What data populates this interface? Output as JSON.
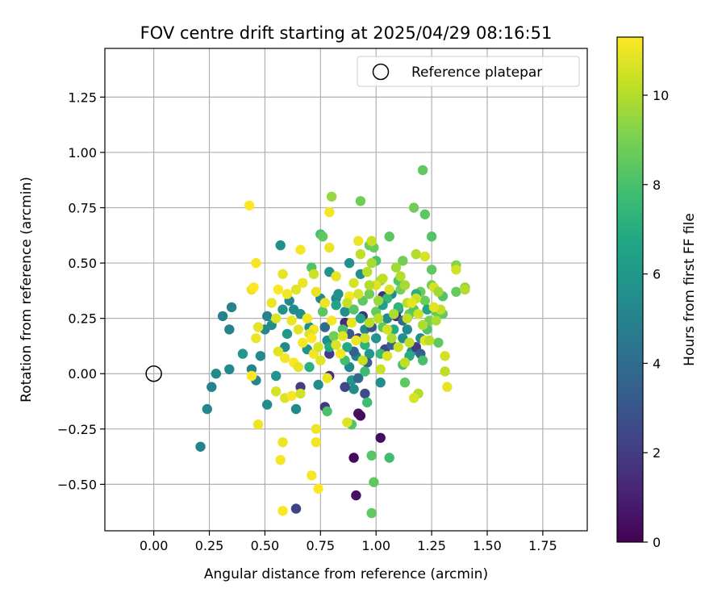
{
  "chart_data": {
    "type": "scatter",
    "title": "FOV centre drift starting at 2025/04/29 08:16:51",
    "xlabel": "Angular distance from reference (arcmin)",
    "ylabel": "Rotation from reference (arcmin)",
    "xlim": [
      -0.22,
      1.95
    ],
    "ylim": [
      -0.71,
      1.47
    ],
    "xticks": [
      "0.00",
      "0.25",
      "0.50",
      "0.75",
      "1.00",
      "1.25",
      "1.50",
      "1.75"
    ],
    "yticks": [
      "−0.50",
      "−0.25",
      "0.00",
      "0.25",
      "0.50",
      "0.75",
      "1.00",
      "1.25"
    ],
    "grid": true,
    "legend": {
      "label": "Reference platepar",
      "placement": "top-right"
    },
    "reference_point": {
      "x": 0.0,
      "y": 0.0
    },
    "colorbar": {
      "label": "Hours from first FF file",
      "colormap": "viridis",
      "range": [
        0,
        11.3
      ],
      "ticks": [
        "0",
        "2",
        "4",
        "6",
        "8",
        "10"
      ]
    },
    "points": [
      {
        "x": 0.21,
        "y": -0.33,
        "c": 5.0
      },
      {
        "x": 0.24,
        "y": -0.16,
        "c": 5.1
      },
      {
        "x": 0.26,
        "y": -0.06,
        "c": 5.0
      },
      {
        "x": 0.28,
        "y": 0.0,
        "c": 5.3
      },
      {
        "x": 0.31,
        "y": 0.26,
        "c": 4.9
      },
      {
        "x": 0.34,
        "y": 0.2,
        "c": 5.0
      },
      {
        "x": 0.35,
        "y": 0.3,
        "c": 5.0
      },
      {
        "x": 0.34,
        "y": 0.02,
        "c": 5.3
      },
      {
        "x": 0.4,
        "y": 0.09,
        "c": 6.0
      },
      {
        "x": 0.44,
        "y": 0.02,
        "c": 5.0
      },
      {
        "x": 0.46,
        "y": -0.03,
        "c": 5.1
      },
      {
        "x": 0.48,
        "y": 0.08,
        "c": 5.3
      },
      {
        "x": 0.5,
        "y": 0.2,
        "c": 5.2
      },
      {
        "x": 0.51,
        "y": -0.14,
        "c": 5.5
      },
      {
        "x": 0.51,
        "y": 0.26,
        "c": 5.0
      },
      {
        "x": 0.53,
        "y": 0.22,
        "c": 5.5
      },
      {
        "x": 0.55,
        "y": -0.01,
        "c": 5.8
      },
      {
        "x": 0.57,
        "y": 0.58,
        "c": 5.6
      },
      {
        "x": 0.58,
        "y": 0.29,
        "c": 5.7
      },
      {
        "x": 0.59,
        "y": 0.12,
        "c": 5.4
      },
      {
        "x": 0.6,
        "y": 0.18,
        "c": 6.0
      },
      {
        "x": 0.61,
        "y": 0.33,
        "c": 5.2
      },
      {
        "x": 0.63,
        "y": 0.29,
        "c": 5.4
      },
      {
        "x": 0.64,
        "y": -0.16,
        "c": 5.3
      },
      {
        "x": 0.66,
        "y": 0.27,
        "c": 5.5
      },
      {
        "x": 0.69,
        "y": 0.11,
        "c": 5.8
      },
      {
        "x": 0.7,
        "y": 0.21,
        "c": 5.6
      },
      {
        "x": 0.74,
        "y": -0.05,
        "c": 5.5
      },
      {
        "x": 0.75,
        "y": 0.34,
        "c": 5.3
      },
      {
        "x": 0.78,
        "y": 0.15,
        "c": 5.5
      },
      {
        "x": 0.79,
        "y": 0.46,
        "c": 5.8
      },
      {
        "x": 0.82,
        "y": 0.34,
        "c": 5.2
      },
      {
        "x": 0.83,
        "y": 0.36,
        "c": 5.6
      },
      {
        "x": 0.86,
        "y": 0.28,
        "c": 5.5
      },
      {
        "x": 0.88,
        "y": 0.5,
        "c": 5.6
      },
      {
        "x": 0.88,
        "y": 0.03,
        "c": 5.3
      },
      {
        "x": 0.89,
        "y": -0.03,
        "c": 5.8
      },
      {
        "x": 0.9,
        "y": -0.07,
        "c": 5.4
      },
      {
        "x": 0.91,
        "y": 0.08,
        "c": 5.0
      },
      {
        "x": 0.93,
        "y": 0.45,
        "c": 5.5
      },
      {
        "x": 0.95,
        "y": 0.2,
        "c": 5.2
      },
      {
        "x": 0.97,
        "y": 0.09,
        "c": 5.9
      },
      {
        "x": 1.0,
        "y": 0.16,
        "c": 5.7
      },
      {
        "x": 1.02,
        "y": -0.04,
        "c": 5.5
      },
      {
        "x": 1.05,
        "y": 0.25,
        "c": 5.4
      },
      {
        "x": 1.07,
        "y": 0.36,
        "c": 5.3
      },
      {
        "x": 1.1,
        "y": 0.29,
        "c": 5.1
      },
      {
        "x": 1.12,
        "y": 0.16,
        "c": 5.6
      },
      {
        "x": 1.14,
        "y": 0.2,
        "c": 5.4
      },
      {
        "x": 1.16,
        "y": 0.1,
        "c": 5.7
      },
      {
        "x": 1.2,
        "y": 0.16,
        "c": 5.4
      },
      {
        "x": 0.64,
        "y": -0.61,
        "c": 2.2
      },
      {
        "x": 0.66,
        "y": -0.06,
        "c": 2.0
      },
      {
        "x": 0.77,
        "y": -0.15,
        "c": 1.8
      },
      {
        "x": 0.79,
        "y": -0.01,
        "c": 1.6
      },
      {
        "x": 0.79,
        "y": 0.09,
        "c": 2.0
      },
      {
        "x": 0.86,
        "y": 0.23,
        "c": 1.3
      },
      {
        "x": 0.86,
        "y": -0.06,
        "c": 2.4
      },
      {
        "x": 0.9,
        "y": -0.38,
        "c": 0.3
      },
      {
        "x": 0.91,
        "y": -0.55,
        "c": 0.5
      },
      {
        "x": 0.92,
        "y": -0.18,
        "c": 0.6
      },
      {
        "x": 0.93,
        "y": -0.19,
        "c": 0.4
      },
      {
        "x": 0.95,
        "y": -0.09,
        "c": 2.6
      },
      {
        "x": 0.92,
        "y": 0.16,
        "c": 2.2
      },
      {
        "x": 0.94,
        "y": 0.26,
        "c": 1.5
      },
      {
        "x": 0.98,
        "y": 0.21,
        "c": 2.8
      },
      {
        "x": 1.02,
        "y": -0.29,
        "c": 0.4
      },
      {
        "x": 1.03,
        "y": 0.35,
        "c": 1.6
      },
      {
        "x": 1.04,
        "y": 0.11,
        "c": 2.5
      },
      {
        "x": 1.09,
        "y": 0.26,
        "c": 1.2
      },
      {
        "x": 1.18,
        "y": 0.12,
        "c": 1.9
      },
      {
        "x": 0.88,
        "y": 0.18,
        "c": 3.2
      },
      {
        "x": 0.9,
        "y": 0.1,
        "c": 3.5
      },
      {
        "x": 0.96,
        "y": 0.05,
        "c": 3.4
      },
      {
        "x": 1.07,
        "y": 0.13,
        "c": 3.6
      },
      {
        "x": 1.12,
        "y": 0.24,
        "c": 3.8
      },
      {
        "x": 1.2,
        "y": 0.09,
        "c": 3.4
      },
      {
        "x": 0.77,
        "y": 0.21,
        "c": 3.9
      },
      {
        "x": 0.92,
        "y": -0.02,
        "c": 3.9
      },
      {
        "x": 0.75,
        "y": 0.63,
        "c": 8.0
      },
      {
        "x": 0.76,
        "y": 0.62,
        "c": 8.5
      },
      {
        "x": 0.8,
        "y": 0.8,
        "c": 9.5
      },
      {
        "x": 0.93,
        "y": 0.78,
        "c": 8.8
      },
      {
        "x": 0.97,
        "y": 0.58,
        "c": 8.6
      },
      {
        "x": 0.99,
        "y": 0.57,
        "c": 8.7
      },
      {
        "x": 1.0,
        "y": 0.51,
        "c": 8.0
      },
      {
        "x": 1.06,
        "y": 0.62,
        "c": 8.4
      },
      {
        "x": 1.12,
        "y": 0.51,
        "c": 8.8
      },
      {
        "x": 1.17,
        "y": 0.75,
        "c": 8.8
      },
      {
        "x": 1.22,
        "y": 0.72,
        "c": 8.4
      },
      {
        "x": 1.21,
        "y": 0.92,
        "c": 8.5
      },
      {
        "x": 1.25,
        "y": 0.62,
        "c": 8.2
      },
      {
        "x": 1.25,
        "y": 0.47,
        "c": 8.5
      },
      {
        "x": 1.2,
        "y": 0.37,
        "c": 8.7
      },
      {
        "x": 1.25,
        "y": 0.4,
        "c": 9.0
      },
      {
        "x": 1.3,
        "y": 0.27,
        "c": 8.6
      },
      {
        "x": 1.36,
        "y": 0.49,
        "c": 9.2
      },
      {
        "x": 1.36,
        "y": 0.37,
        "c": 8.6
      },
      {
        "x": 1.4,
        "y": 0.39,
        "c": 9.4
      },
      {
        "x": 1.28,
        "y": 0.14,
        "c": 8.5
      },
      {
        "x": 1.21,
        "y": 0.06,
        "c": 8.0
      },
      {
        "x": 1.13,
        "y": -0.04,
        "c": 8.5
      },
      {
        "x": 1.06,
        "y": -0.38,
        "c": 7.8
      },
      {
        "x": 0.99,
        "y": -0.49,
        "c": 8.5
      },
      {
        "x": 0.98,
        "y": -0.37,
        "c": 8.3
      },
      {
        "x": 0.98,
        "y": -0.63,
        "c": 8.5
      },
      {
        "x": 0.89,
        "y": -0.23,
        "c": 8.2
      },
      {
        "x": 0.78,
        "y": -0.17,
        "c": 8.0
      },
      {
        "x": 0.96,
        "y": -0.13,
        "c": 7.8
      },
      {
        "x": 0.95,
        "y": 0.01,
        "c": 7.6
      },
      {
        "x": 0.86,
        "y": 0.06,
        "c": 7.8
      },
      {
        "x": 0.85,
        "y": 0.2,
        "c": 8.0
      },
      {
        "x": 0.9,
        "y": 0.29,
        "c": 8.3
      },
      {
        "x": 0.94,
        "y": 0.33,
        "c": 8.5
      },
      {
        "x": 0.97,
        "y": 0.36,
        "c": 8.8
      },
      {
        "x": 1.0,
        "y": 0.28,
        "c": 8.6
      },
      {
        "x": 1.03,
        "y": 0.21,
        "c": 8.4
      },
      {
        "x": 1.08,
        "y": 0.27,
        "c": 8.0
      },
      {
        "x": 1.1,
        "y": 0.42,
        "c": 8.2
      },
      {
        "x": 1.11,
        "y": 0.38,
        "c": 8.9
      },
      {
        "x": 1.15,
        "y": 0.27,
        "c": 8.6
      },
      {
        "x": 1.17,
        "y": 0.29,
        "c": 8.3
      },
      {
        "x": 1.22,
        "y": 0.33,
        "c": 8.7
      },
      {
        "x": 1.24,
        "y": 0.24,
        "c": 8.9
      },
      {
        "x": 1.27,
        "y": 0.28,
        "c": 8.6
      },
      {
        "x": 1.23,
        "y": 0.2,
        "c": 8.2
      },
      {
        "x": 1.02,
        "y": 0.09,
        "c": 7.5
      },
      {
        "x": 0.71,
        "y": 0.48,
        "c": 8.2
      },
      {
        "x": 0.76,
        "y": 0.28,
        "c": 8.4
      },
      {
        "x": 0.81,
        "y": 0.17,
        "c": 8.8
      },
      {
        "x": 1.12,
        "y": 0.04,
        "c": 8.0
      },
      {
        "x": 1.3,
        "y": 0.35,
        "c": 8.2
      },
      {
        "x": 1.05,
        "y": 0.34,
        "c": 7.5
      },
      {
        "x": 0.82,
        "y": 0.31,
        "c": 6.5
      },
      {
        "x": 0.87,
        "y": 0.12,
        "c": 6.8
      },
      {
        "x": 0.93,
        "y": 0.25,
        "c": 6.6
      },
      {
        "x": 1.03,
        "y": 0.31,
        "c": 6.4
      },
      {
        "x": 1.08,
        "y": 0.2,
        "c": 6.9
      },
      {
        "x": 1.15,
        "y": 0.08,
        "c": 7.0
      },
      {
        "x": 1.23,
        "y": 0.29,
        "c": 6.6
      },
      {
        "x": 0.79,
        "y": 0.12,
        "c": 6.8
      },
      {
        "x": 0.7,
        "y": 0.03,
        "c": 7.1
      },
      {
        "x": 0.95,
        "y": 0.13,
        "c": 7.2
      },
      {
        "x": 1.1,
        "y": 0.3,
        "c": 7.3
      },
      {
        "x": 1.18,
        "y": 0.36,
        "c": 7.0
      },
      {
        "x": 1.13,
        "y": 0.4,
        "c": 9.8
      },
      {
        "x": 1.14,
        "y": 0.32,
        "c": 10.1
      },
      {
        "x": 1.18,
        "y": 0.34,
        "c": 10.4
      },
      {
        "x": 1.21,
        "y": 0.22,
        "c": 9.9
      },
      {
        "x": 1.18,
        "y": 0.54,
        "c": 10.0
      },
      {
        "x": 1.26,
        "y": 0.39,
        "c": 10.6
      },
      {
        "x": 1.28,
        "y": 0.37,
        "c": 9.7
      },
      {
        "x": 1.29,
        "y": 0.29,
        "c": 10.2
      },
      {
        "x": 1.31,
        "y": 0.08,
        "c": 10.5
      },
      {
        "x": 1.31,
        "y": 0.01,
        "c": 10.2
      },
      {
        "x": 1.32,
        "y": -0.06,
        "c": 10.9
      },
      {
        "x": 1.19,
        "y": -0.09,
        "c": 10.0
      },
      {
        "x": 1.17,
        "y": -0.11,
        "c": 10.6
      },
      {
        "x": 1.13,
        "y": 0.05,
        "c": 10.2
      },
      {
        "x": 1.22,
        "y": 0.15,
        "c": 10.8
      },
      {
        "x": 1.1,
        "y": 0.12,
        "c": 10.4
      },
      {
        "x": 1.07,
        "y": 0.16,
        "c": 9.9
      },
      {
        "x": 1.05,
        "y": 0.2,
        "c": 10.5
      },
      {
        "x": 1.01,
        "y": 0.25,
        "c": 10.1
      },
      {
        "x": 1.02,
        "y": 0.42,
        "c": 9.6
      },
      {
        "x": 1.0,
        "y": 0.4,
        "c": 10.7
      },
      {
        "x": 0.98,
        "y": 0.6,
        "c": 10.3
      },
      {
        "x": 0.97,
        "y": 0.23,
        "c": 10.0
      },
      {
        "x": 0.95,
        "y": 0.16,
        "c": 10.5
      },
      {
        "x": 0.93,
        "y": 0.54,
        "c": 10.2
      },
      {
        "x": 0.92,
        "y": 0.6,
        "c": 11.0
      },
      {
        "x": 0.9,
        "y": 0.41,
        "c": 10.6
      },
      {
        "x": 0.88,
        "y": 0.35,
        "c": 11.1
      },
      {
        "x": 0.85,
        "y": 0.17,
        "c": 10.8
      },
      {
        "x": 0.82,
        "y": 0.44,
        "c": 10.9
      },
      {
        "x": 0.8,
        "y": 0.24,
        "c": 11.2
      },
      {
        "x": 0.77,
        "y": 0.32,
        "c": 11.0
      },
      {
        "x": 0.72,
        "y": 0.45,
        "c": 10.4
      },
      {
        "x": 0.73,
        "y": 0.37,
        "c": 10.9
      },
      {
        "x": 0.72,
        "y": 0.2,
        "c": 11.1
      },
      {
        "x": 0.67,
        "y": 0.41,
        "c": 11.0
      },
      {
        "x": 0.66,
        "y": 0.56,
        "c": 11.2
      },
      {
        "x": 0.64,
        "y": 0.38,
        "c": 10.8
      },
      {
        "x": 0.6,
        "y": 0.36,
        "c": 11.1
      },
      {
        "x": 0.58,
        "y": 0.45,
        "c": 10.9
      },
      {
        "x": 0.56,
        "y": 0.38,
        "c": 11.3
      },
      {
        "x": 0.55,
        "y": 0.25,
        "c": 10.7
      },
      {
        "x": 0.53,
        "y": 0.32,
        "c": 11.0
      },
      {
        "x": 0.46,
        "y": 0.5,
        "c": 11.2
      },
      {
        "x": 0.44,
        "y": 0.38,
        "c": 10.9
      },
      {
        "x": 0.45,
        "y": 0.39,
        "c": 11.3
      },
      {
        "x": 0.43,
        "y": 0.76,
        "c": 11.3
      },
      {
        "x": 0.46,
        "y": 0.16,
        "c": 11.0
      },
      {
        "x": 0.47,
        "y": 0.21,
        "c": 10.8
      },
      {
        "x": 0.47,
        "y": -0.23,
        "c": 11.0
      },
      {
        "x": 0.44,
        "y": -0.01,
        "c": 11.3
      },
      {
        "x": 0.55,
        "y": -0.08,
        "c": 10.6
      },
      {
        "x": 0.57,
        "y": -0.39,
        "c": 11.2
      },
      {
        "x": 0.58,
        "y": -0.31,
        "c": 11.0
      },
      {
        "x": 0.58,
        "y": -0.62,
        "c": 11.3
      },
      {
        "x": 0.59,
        "y": -0.11,
        "c": 10.7
      },
      {
        "x": 0.62,
        "y": -0.1,
        "c": 11.2
      },
      {
        "x": 0.66,
        "y": -0.09,
        "c": 10.5
      },
      {
        "x": 0.71,
        "y": -0.46,
        "c": 11.2
      },
      {
        "x": 0.73,
        "y": -0.25,
        "c": 11.0
      },
      {
        "x": 0.74,
        "y": -0.52,
        "c": 11.3
      },
      {
        "x": 0.73,
        "y": -0.31,
        "c": 11.1
      },
      {
        "x": 0.78,
        "y": -0.02,
        "c": 11.0
      },
      {
        "x": 0.56,
        "y": 0.1,
        "c": 10.8
      },
      {
        "x": 0.59,
        "y": 0.07,
        "c": 11.1
      },
      {
        "x": 0.63,
        "y": 0.05,
        "c": 11.3
      },
      {
        "x": 0.65,
        "y": 0.03,
        "c": 10.9
      },
      {
        "x": 0.67,
        "y": 0.14,
        "c": 11.2
      },
      {
        "x": 0.7,
        "y": 0.18,
        "c": 10.7
      },
      {
        "x": 0.72,
        "y": 0.09,
        "c": 11.1
      },
      {
        "x": 0.75,
        "y": 0.06,
        "c": 10.8
      },
      {
        "x": 0.62,
        "y": 0.24,
        "c": 11.0
      },
      {
        "x": 0.65,
        "y": 0.2,
        "c": 10.8
      },
      {
        "x": 0.69,
        "y": 0.25,
        "c": 11.1
      },
      {
        "x": 0.71,
        "y": 0.16,
        "c": 11.3
      },
      {
        "x": 0.74,
        "y": 0.12,
        "c": 10.6
      },
      {
        "x": 0.79,
        "y": 0.57,
        "c": 11.0
      },
      {
        "x": 0.79,
        "y": 0.73,
        "c": 11.1
      },
      {
        "x": 0.82,
        "y": 0.13,
        "c": 10.7
      },
      {
        "x": 0.84,
        "y": 0.09,
        "c": 11.1
      },
      {
        "x": 0.87,
        "y": -0.22,
        "c": 10.8
      },
      {
        "x": 0.87,
        "y": 0.32,
        "c": 10.3
      },
      {
        "x": 0.89,
        "y": 0.23,
        "c": 10.9
      },
      {
        "x": 0.92,
        "y": 0.36,
        "c": 10.6
      },
      {
        "x": 0.96,
        "y": 0.46,
        "c": 10.1
      },
      {
        "x": 0.98,
        "y": 0.5,
        "c": 9.8
      },
      {
        "x": 1.03,
        "y": 0.43,
        "c": 10.2
      },
      {
        "x": 1.06,
        "y": 0.38,
        "c": 10.7
      },
      {
        "x": 1.09,
        "y": 0.48,
        "c": 9.7
      },
      {
        "x": 1.11,
        "y": 0.44,
        "c": 10.0
      },
      {
        "x": 1.16,
        "y": 0.32,
        "c": 10.9
      },
      {
        "x": 1.19,
        "y": 0.27,
        "c": 10.5
      },
      {
        "x": 1.22,
        "y": 0.53,
        "c": 10.6
      },
      {
        "x": 1.24,
        "y": 0.15,
        "c": 10.1
      },
      {
        "x": 1.26,
        "y": 0.3,
        "c": 10.8
      },
      {
        "x": 1.36,
        "y": 0.47,
        "c": 10.5
      },
      {
        "x": 1.4,
        "y": 0.38,
        "c": 10.0
      },
      {
        "x": 1.27,
        "y": 0.24,
        "c": 9.9
      },
      {
        "x": 1.02,
        "y": 0.02,
        "c": 10.4
      },
      {
        "x": 1.05,
        "y": 0.08,
        "c": 10.7
      },
      {
        "x": 0.94,
        "y": 0.06,
        "c": 10.3
      },
      {
        "x": 0.91,
        "y": 0.15,
        "c": 11.0
      },
      {
        "x": 1.08,
        "y": 0.27,
        "c": 9.9
      },
      {
        "x": 1.15,
        "y": 0.14,
        "c": 10.2
      },
      {
        "x": 1.01,
        "y": 0.33,
        "c": 9.6
      },
      {
        "x": 0.97,
        "y": 0.4,
        "c": 10.0
      },
      {
        "x": 1.14,
        "y": 0.25,
        "c": 10.3
      }
    ]
  }
}
